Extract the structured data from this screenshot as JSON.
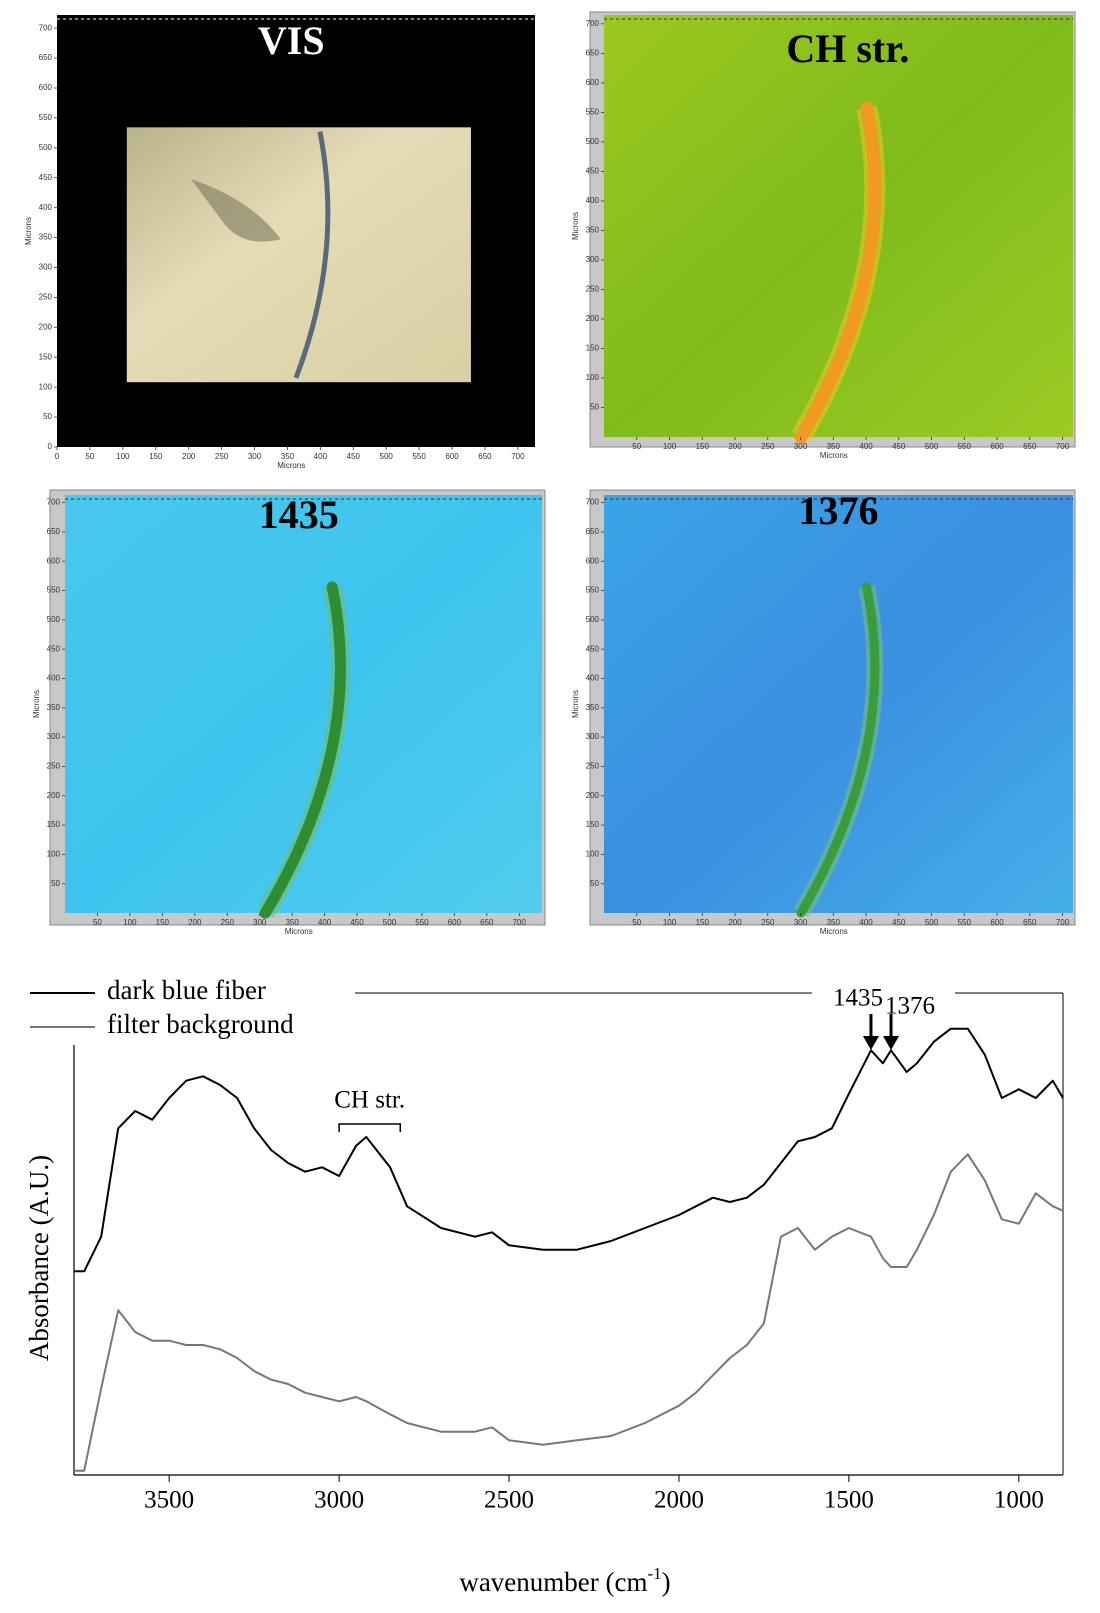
{
  "chart_data": [
    {
      "type": "map",
      "title": "VIS",
      "xlabel": "Microns",
      "ylabel": "Microns",
      "xlim": [
        0,
        726
      ],
      "ylim": [
        0,
        722
      ],
      "xticks": [
        0,
        50,
        100,
        150,
        200,
        250,
        300,
        350,
        400,
        450,
        500,
        550,
        600,
        650,
        700
      ],
      "yticks": [
        0,
        50,
        100,
        150,
        200,
        250,
        300,
        350,
        400,
        450,
        500,
        550,
        600,
        650,
        700
      ]
    },
    {
      "type": "map",
      "title": "CH str.",
      "xlabel": "Microns",
      "ylabel": "Microns",
      "xlim": [
        0,
        716
      ],
      "ylim": [
        0,
        715
      ],
      "xticks": [
        50,
        100,
        150,
        200,
        250,
        300,
        350,
        400,
        450,
        500,
        550,
        600,
        650,
        700
      ],
      "yticks": [
        50,
        100,
        150,
        200,
        250,
        300,
        350,
        400,
        450,
        500,
        550,
        600,
        650,
        700
      ]
    },
    {
      "type": "map",
      "title": "1435",
      "xlabel": "Microns",
      "ylabel": "Microns",
      "xlim": [
        0,
        735
      ],
      "ylim": [
        0,
        713
      ],
      "xticks": [
        50,
        100,
        150,
        200,
        250,
        300,
        350,
        400,
        450,
        500,
        550,
        600,
        650,
        700
      ],
      "yticks": [
        50,
        100,
        150,
        200,
        250,
        300,
        350,
        400,
        450,
        500,
        550,
        600,
        650,
        700
      ]
    },
    {
      "type": "map",
      "title": "1376",
      "xlabel": "Microns",
      "ylabel": "Microns",
      "xlim": [
        0,
        716
      ],
      "ylim": [
        0,
        713
      ],
      "xticks": [
        50,
        100,
        150,
        200,
        250,
        300,
        350,
        400,
        450,
        500,
        550,
        600,
        650,
        700
      ],
      "yticks": [
        50,
        100,
        150,
        200,
        250,
        300,
        350,
        400,
        450,
        500,
        550,
        600,
        650,
        700
      ]
    },
    {
      "type": "line",
      "xlabel": [
        "wavenumber (cm",
        "-1",
        ")"
      ],
      "ylabel": "Absorbance (A.U.)",
      "xlim": [
        3780,
        870
      ],
      "ylim": [
        0,
        105
      ],
      "xticks": [
        3500,
        3000,
        2500,
        2000,
        1500,
        1000
      ],
      "x": [
        3780,
        3750,
        3700,
        3650,
        3600,
        3550,
        3500,
        3450,
        3400,
        3350,
        3300,
        3250,
        3200,
        3150,
        3100,
        3050,
        3000,
        2950,
        2920,
        2850,
        2800,
        2700,
        2600,
        2550,
        2500,
        2400,
        2300,
        2200,
        2100,
        2000,
        1950,
        1900,
        1850,
        1800,
        1750,
        1700,
        1650,
        1600,
        1550,
        1500,
        1435,
        1400,
        1376,
        1330,
        1300,
        1250,
        1200,
        1150,
        1100,
        1050,
        1000,
        950,
        900,
        870
      ],
      "series": [
        {
          "name": "dark blue fiber",
          "color": "#000000",
          "values": [
            47,
            47,
            55,
            80,
            84,
            82,
            87,
            91,
            92,
            90,
            87,
            80,
            75,
            72,
            70,
            71,
            69,
            76,
            78,
            71,
            62,
            57,
            55,
            56,
            53,
            52,
            52,
            54,
            57,
            60,
            62,
            64,
            63,
            64,
            67,
            72,
            77,
            78,
            80,
            88,
            98,
            95,
            98,
            93,
            95,
            100,
            103,
            103,
            97,
            87,
            89,
            87,
            91,
            87
          ]
        },
        {
          "name": "filter background",
          "color": "#777777",
          "values": [
            1,
            1,
            20,
            38,
            33,
            31,
            31,
            30,
            30,
            29,
            27,
            24,
            22,
            21,
            19,
            18,
            17,
            18,
            17,
            14,
            12,
            10,
            10,
            11,
            8,
            7,
            8,
            9,
            12,
            16,
            19,
            23,
            27,
            30,
            35,
            55,
            57,
            52,
            55,
            57,
            55,
            50,
            48,
            48,
            52,
            60,
            70,
            74,
            68,
            59,
            58,
            65,
            62,
            61
          ]
        }
      ],
      "annotations": [
        {
          "label": "CH str.",
          "range": [
            3000,
            2820
          ]
        },
        {
          "label": "1435",
          "value": 1435
        },
        {
          "label": "1376",
          "value": 1376
        }
      ]
    }
  ]
}
